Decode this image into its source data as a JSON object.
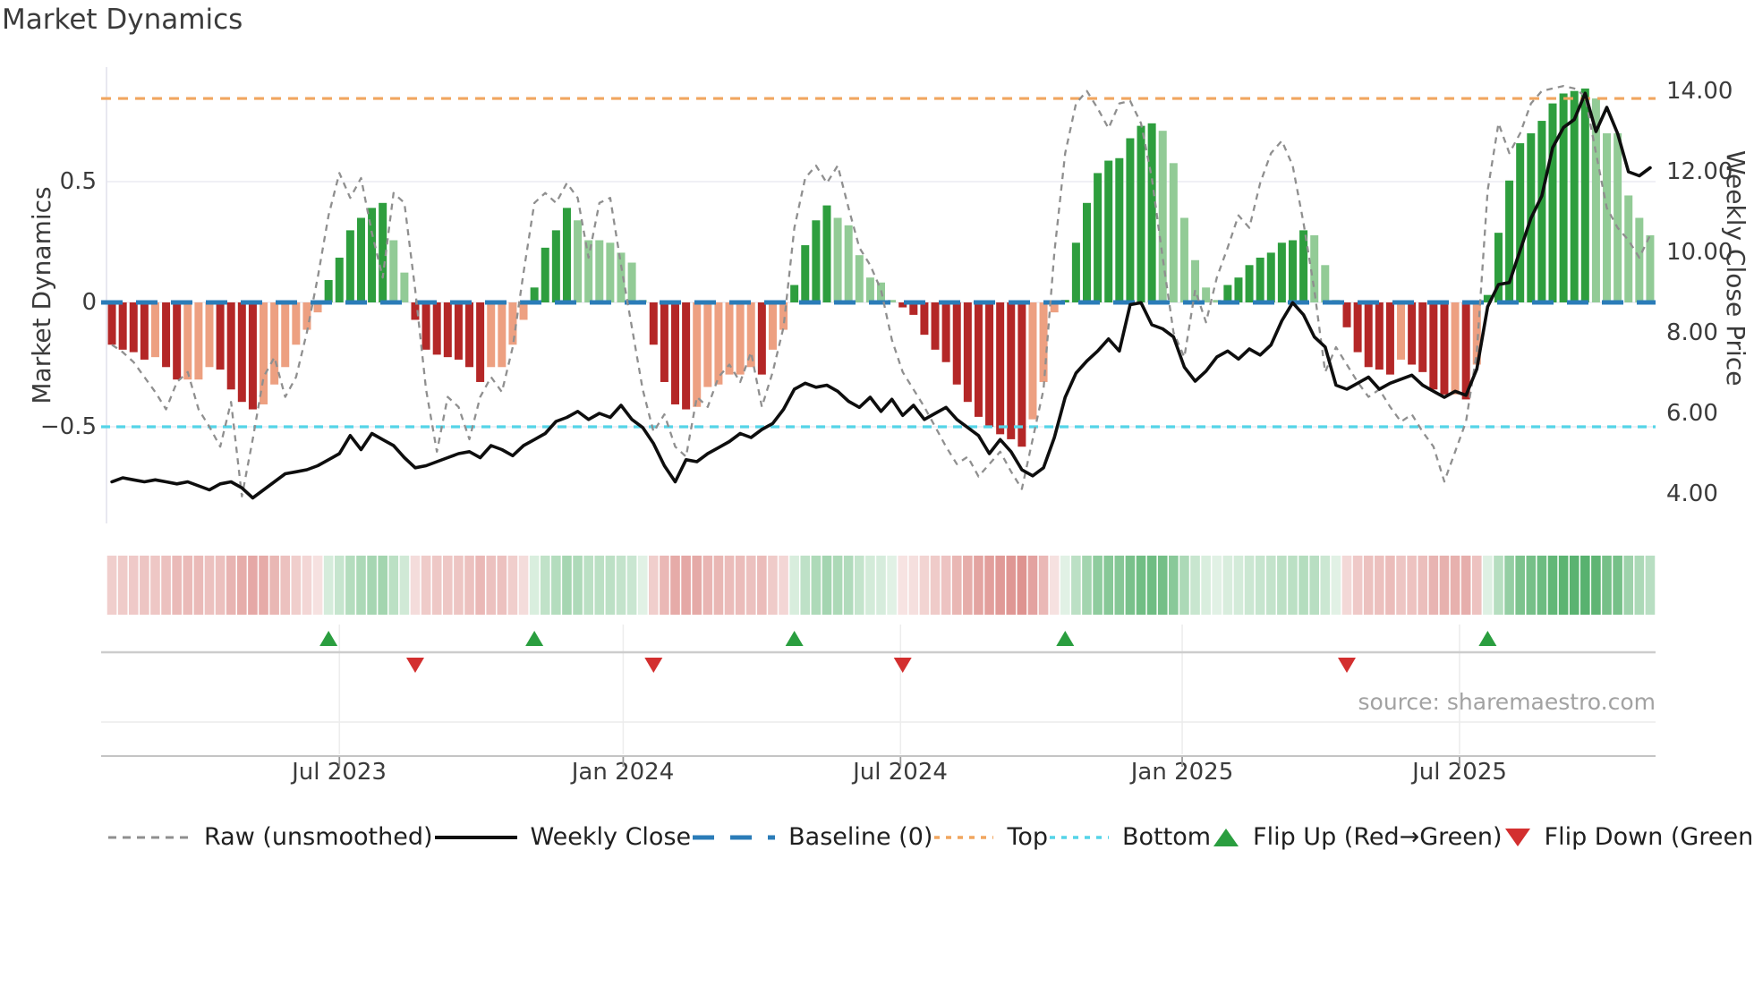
{
  "title": "Market Dynamics",
  "source": "source: sharemaestro.com",
  "axes": {
    "left": {
      "title": "Market Dynamics",
      "ticks": [
        "0.5",
        "0",
        "−0.5"
      ]
    },
    "right": {
      "title": "Weekly Close Price",
      "ticks": [
        "14.00",
        "12.00",
        "10.00",
        "8.00",
        "6.00",
        "4.00"
      ]
    },
    "x": {
      "ticks": [
        "Jul 2023",
        "Jan 2024",
        "Jul 2024",
        "Jan 2025",
        "Jul 2025"
      ]
    }
  },
  "legend": {
    "items": [
      {
        "label": "Raw (unsmoothed)",
        "type": "dashed-line",
        "color": "#8f8f8f"
      },
      {
        "label": "Weekly Close",
        "type": "solid-line",
        "color": "#0e0e0e"
      },
      {
        "label": "Baseline (0)",
        "type": "dashed-line",
        "color": "#2b7cb8"
      },
      {
        "label": "Top",
        "type": "dotted-line",
        "color": "#f1a65f"
      },
      {
        "label": "Bottom",
        "type": "dotted-line",
        "color": "#55d4e8"
      },
      {
        "label": "Flip Up (Red→Green)",
        "type": "triangle-up",
        "color": "#2a9e3f"
      },
      {
        "label": "Flip Down (Green→Red)",
        "type": "triangle-down",
        "color": "#d32f2f"
      }
    ]
  },
  "colors": {
    "bar_pos_strong": "#2e9e3e",
    "bar_pos_fading": "#92cb96",
    "bar_neg_strong": "#b42727",
    "bar_neg_fading": "#eda081",
    "baseline": "#2b7cb8",
    "top_line": "#f1a65f",
    "bottom_line": "#55d4e8",
    "raw_line": "#8f8f8f",
    "price_line": "#0e0e0e",
    "grid": "#ebebf2",
    "heat_pos": "70,170,95",
    "heat_neg": "205,90,85",
    "flip_up": "#2a9e3f",
    "flip_down": "#d32f2f"
  },
  "chart_data": {
    "type": "combo (weekly bar oscillator + line overlay + heatmap strip + flip markers)",
    "n_weeks": 143,
    "osc_axis": {
      "label": "Market Dynamics",
      "ticks": [
        0.5,
        0,
        -0.5
      ],
      "range": [
        -0.95,
        0.95
      ]
    },
    "price_axis": {
      "label": "Weekly Close Price",
      "ticks": [
        14,
        12,
        10,
        8,
        6,
        4
      ],
      "range": [
        3.0,
        14.7
      ]
    },
    "baseline": 0,
    "top_value": 0.82,
    "bottom_value": -0.5,
    "month_ticks": {
      "labels": [
        "Jul 2023",
        "Jan 2024",
        "Jul 2024",
        "Jan 2025",
        "Jul 2025"
      ],
      "weeks": [
        21.5,
        47.7,
        73.3,
        99.3,
        124.9
      ]
    },
    "flip_up_weeks": [
      20,
      39,
      63,
      88,
      127
    ],
    "flip_down_weeks": [
      28,
      50,
      73,
      114
    ],
    "oscillator": [
      -0.17,
      -0.19,
      -0.2,
      -0.23,
      -0.22,
      -0.26,
      -0.31,
      -0.31,
      -0.31,
      -0.26,
      -0.27,
      -0.35,
      -0.4,
      -0.43,
      -0.41,
      -0.33,
      -0.26,
      -0.17,
      -0.11,
      -0.04,
      0.09,
      0.18,
      0.29,
      0.34,
      0.38,
      0.4,
      0.25,
      0.12,
      -0.07,
      -0.19,
      -0.21,
      -0.22,
      -0.23,
      -0.26,
      -0.32,
      -0.26,
      -0.26,
      -0.17,
      -0.07,
      0.06,
      0.22,
      0.29,
      0.38,
      0.33,
      0.25,
      0.25,
      0.24,
      0.2,
      0.16,
      0.01,
      -0.17,
      -0.32,
      -0.41,
      -0.43,
      -0.42,
      -0.34,
      -0.33,
      -0.29,
      -0.29,
      -0.26,
      -0.29,
      -0.19,
      -0.11,
      0.07,
      0.23,
      0.33,
      0.39,
      0.34,
      0.31,
      0.19,
      0.1,
      0.08,
      0.01,
      -0.02,
      -0.05,
      -0.13,
      -0.19,
      -0.24,
      -0.33,
      -0.4,
      -0.46,
      -0.5,
      -0.53,
      -0.55,
      -0.58,
      -0.47,
      -0.32,
      -0.04,
      0.01,
      0.24,
      0.4,
      0.52,
      0.57,
      0.58,
      0.66,
      0.71,
      0.72,
      0.69,
      0.56,
      0.34,
      0.17,
      0.06,
      0.01,
      0.07,
      0.1,
      0.15,
      0.18,
      0.2,
      0.24,
      0.25,
      0.29,
      0.27,
      0.15,
      0.01,
      -0.1,
      -0.2,
      -0.26,
      -0.27,
      -0.29,
      -0.23,
      -0.25,
      -0.28,
      -0.35,
      -0.37,
      -0.37,
      -0.39,
      -0.25,
      0.03,
      0.28,
      0.49,
      0.64,
      0.68,
      0.73,
      0.8,
      0.84,
      0.85,
      0.86,
      0.82,
      0.68,
      0.68,
      0.43,
      0.34,
      0.27
    ],
    "raw": [
      -0.17,
      -0.2,
      -0.24,
      -0.3,
      -0.36,
      -0.43,
      -0.32,
      -0.28,
      -0.43,
      -0.5,
      -0.58,
      -0.4,
      -0.78,
      -0.55,
      -0.3,
      -0.22,
      -0.38,
      -0.3,
      -0.12,
      0.1,
      0.35,
      0.52,
      0.42,
      0.5,
      0.28,
      0.1,
      0.44,
      0.4,
      0.05,
      -0.35,
      -0.6,
      -0.38,
      -0.42,
      -0.55,
      -0.38,
      -0.3,
      -0.36,
      -0.18,
      0.12,
      0.4,
      0.44,
      0.4,
      0.48,
      0.42,
      0.18,
      0.4,
      0.42,
      0.15,
      -0.1,
      -0.35,
      -0.52,
      -0.45,
      -0.58,
      -0.62,
      -0.38,
      -0.42,
      -0.3,
      -0.25,
      -0.32,
      -0.2,
      -0.42,
      -0.28,
      -0.1,
      0.3,
      0.5,
      0.55,
      0.48,
      0.55,
      0.38,
      0.22,
      0.15,
      0.05,
      -0.15,
      -0.28,
      -0.35,
      -0.42,
      -0.5,
      -0.58,
      -0.65,
      -0.62,
      -0.7,
      -0.65,
      -0.6,
      -0.68,
      -0.75,
      -0.55,
      -0.35,
      0.2,
      0.6,
      0.8,
      0.85,
      0.78,
      0.7,
      0.8,
      0.81,
      0.72,
      0.5,
      0.18,
      -0.12,
      -0.22,
      0.05,
      -0.08,
      0.1,
      0.22,
      0.35,
      0.3,
      0.48,
      0.6,
      0.65,
      0.55,
      0.32,
      0.05,
      -0.28,
      -0.18,
      -0.25,
      -0.32,
      -0.38,
      -0.35,
      -0.42,
      -0.48,
      -0.45,
      -0.52,
      -0.58,
      -0.72,
      -0.6,
      -0.48,
      -0.2,
      0.45,
      0.72,
      0.6,
      0.68,
      0.8,
      0.85,
      0.86,
      0.87,
      0.86,
      0.83,
      0.6,
      0.38,
      0.3,
      0.25,
      0.18,
      0.27
    ],
    "price": [
      4.3,
      4.4,
      4.35,
      4.3,
      4.35,
      4.3,
      4.25,
      4.3,
      4.2,
      4.1,
      4.25,
      4.3,
      4.15,
      3.9,
      4.1,
      4.3,
      4.5,
      4.55,
      4.6,
      4.7,
      4.85,
      5.0,
      5.45,
      5.1,
      5.5,
      5.35,
      5.2,
      4.9,
      4.65,
      4.7,
      4.8,
      4.9,
      5.0,
      5.05,
      4.9,
      5.2,
      5.1,
      4.95,
      5.2,
      5.35,
      5.5,
      5.8,
      5.9,
      6.05,
      5.85,
      6.0,
      5.9,
      6.2,
      5.85,
      5.65,
      5.25,
      4.7,
      4.3,
      4.85,
      4.8,
      5.0,
      5.15,
      5.3,
      5.5,
      5.4,
      5.6,
      5.75,
      6.1,
      6.6,
      6.75,
      6.65,
      6.7,
      6.55,
      6.3,
      6.15,
      6.4,
      6.05,
      6.35,
      5.95,
      6.2,
      5.85,
      6.0,
      6.15,
      5.85,
      5.65,
      5.45,
      5.0,
      5.35,
      5.05,
      4.6,
      4.45,
      4.65,
      5.4,
      6.4,
      7.0,
      7.3,
      7.55,
      7.85,
      7.55,
      8.7,
      8.75,
      8.2,
      8.1,
      7.9,
      7.15,
      6.8,
      7.05,
      7.4,
      7.55,
      7.35,
      7.6,
      7.45,
      7.7,
      8.3,
      8.75,
      8.45,
      7.9,
      7.65,
      6.7,
      6.6,
      6.75,
      6.9,
      6.6,
      6.75,
      6.85,
      6.95,
      6.7,
      6.55,
      6.4,
      6.55,
      6.45,
      7.1,
      8.65,
      9.2,
      9.25,
      10.05,
      10.85,
      11.4,
      12.6,
      13.1,
      13.3,
      13.95,
      13.0,
      13.6,
      12.95,
      12.0,
      11.9,
      12.1
    ]
  }
}
